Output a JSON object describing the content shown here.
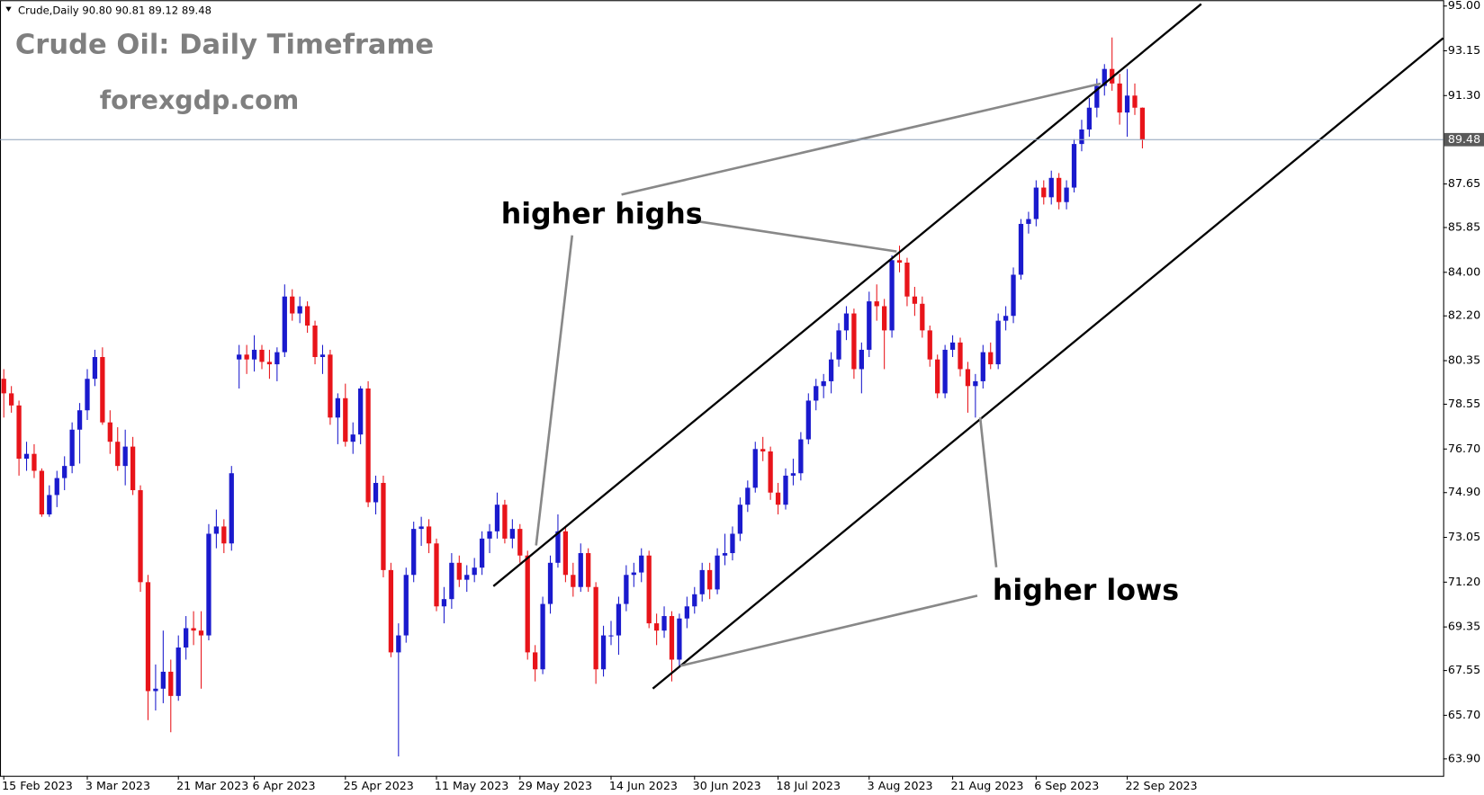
{
  "chart_data": {
    "type": "candlestick",
    "header": "Crude,Daily  90.80 90.81 89.12 89.48",
    "title": "Crude Oil: Daily Timeframe",
    "subtitle": "forexgdp.com",
    "annotations": [
      "higher highs",
      "higher lows"
    ],
    "up_color": "#1a1acd",
    "down_color": "#e8141a",
    "last_price": 89.48,
    "ylim": [
      63.2,
      95.24
    ],
    "yticks": [
      {
        "value": 95,
        "label": "95.00"
      },
      {
        "value": 93.15,
        "label": "93.15"
      },
      {
        "value": 91.3,
        "label": "91.30"
      },
      {
        "value": 87.65,
        "label": "87.65"
      },
      {
        "value": 85.85,
        "label": "85.85"
      },
      {
        "value": 84,
        "label": "84.00"
      },
      {
        "value": 82.2,
        "label": "82.20"
      },
      {
        "value": 80.35,
        "label": "80.35"
      },
      {
        "value": 78.55,
        "label": "78.55"
      },
      {
        "value": 76.7,
        "label": "76.70"
      },
      {
        "value": 74.9,
        "label": "74.90"
      },
      {
        "value": 73.05,
        "label": "73.05"
      },
      {
        "value": 71.2,
        "label": "71.20"
      },
      {
        "value": 69.35,
        "label": "69.35"
      },
      {
        "value": 67.55,
        "label": "67.55"
      },
      {
        "value": 65.7,
        "label": "65.70"
      },
      {
        "value": 63.9,
        "label": "63.90"
      }
    ],
    "categories": [
      "15 Feb 2023",
      null,
      null,
      null,
      null,
      null,
      null,
      null,
      null,
      null,
      null,
      "3 Mar 2023",
      null,
      null,
      null,
      null,
      null,
      null,
      null,
      null,
      null,
      null,
      null,
      "21 Mar 2023",
      null,
      null,
      null,
      null,
      null,
      null,
      null,
      null,
      null,
      "6 Apr 2023",
      null,
      null,
      null,
      null,
      null,
      null,
      null,
      null,
      null,
      null,
      null,
      "25 Apr 2023",
      null,
      null,
      null,
      null,
      null,
      null,
      null,
      null,
      null,
      null,
      null,
      "11 May 2023",
      null,
      null,
      null,
      null,
      null,
      null,
      null,
      null,
      null,
      null,
      "29 May 2023",
      null,
      null,
      null,
      null,
      null,
      null,
      null,
      null,
      null,
      null,
      null,
      "14 Jun 2023",
      null,
      null,
      null,
      null,
      null,
      null,
      null,
      null,
      null,
      null,
      "30 Jun 2023",
      null,
      null,
      null,
      null,
      null,
      null,
      null,
      null,
      null,
      null,
      "18 Jul 2023",
      null,
      null,
      null,
      null,
      null,
      null,
      null,
      null,
      null,
      null,
      null,
      "3 Aug 2023",
      null,
      null,
      null,
      null,
      null,
      null,
      null,
      null,
      null,
      null,
      "21 Aug 2023",
      null,
      null,
      null,
      null,
      null,
      null,
      null,
      null,
      null,
      null,
      "6 Sep 2023",
      null,
      null,
      null,
      null,
      null,
      null,
      null,
      null,
      null,
      null,
      null,
      "22 Sep 2023",
      null,
      null
    ],
    "ohlc": [
      [
        79.6,
        80.0,
        78.0,
        79.0
      ],
      [
        79.0,
        79.3,
        78.2,
        78.5
      ],
      [
        78.5,
        78.7,
        75.6,
        76.3
      ],
      [
        76.3,
        77.0,
        75.8,
        76.5
      ],
      [
        76.5,
        76.9,
        75.5,
        75.8
      ],
      [
        75.8,
        75.9,
        73.9,
        74.0
      ],
      [
        74.0,
        75.2,
        73.9,
        74.8
      ],
      [
        74.8,
        75.8,
        74.3,
        75.5
      ],
      [
        75.5,
        76.4,
        75.0,
        76.0
      ],
      [
        76.0,
        77.8,
        75.7,
        77.5
      ],
      [
        77.5,
        78.6,
        76.1,
        78.3
      ],
      [
        78.3,
        80.0,
        77.9,
        79.6
      ],
      [
        79.6,
        80.8,
        79.3,
        80.5
      ],
      [
        80.5,
        80.9,
        77.7,
        77.8
      ],
      [
        77.8,
        78.3,
        76.5,
        77.0
      ],
      [
        77.0,
        77.6,
        75.8,
        76.0
      ],
      [
        76.0,
        77.5,
        75.2,
        76.8
      ],
      [
        76.8,
        77.2,
        74.8,
        75.0
      ],
      [
        75.0,
        75.2,
        70.8,
        71.2
      ],
      [
        71.2,
        71.5,
        65.5,
        66.7
      ],
      [
        66.7,
        67.8,
        65.9,
        66.8
      ],
      [
        66.8,
        69.2,
        66.2,
        67.5
      ],
      [
        67.5,
        68.0,
        65.0,
        66.5
      ],
      [
        66.5,
        69.0,
        66.3,
        68.5
      ],
      [
        68.5,
        69.8,
        68.0,
        69.3
      ],
      [
        69.3,
        70.0,
        68.6,
        69.2
      ],
      [
        69.2,
        70.0,
        66.8,
        69.0
      ],
      [
        69.0,
        73.6,
        68.8,
        73.2
      ],
      [
        73.2,
        74.2,
        72.6,
        73.5
      ],
      [
        73.5,
        73.8,
        72.4,
        72.8
      ],
      [
        72.8,
        76.0,
        72.5,
        75.7
      ],
      [
        80.4,
        81.0,
        79.2,
        80.6
      ],
      [
        80.6,
        81.0,
        79.8,
        80.4
      ],
      [
        80.4,
        81.4,
        79.9,
        80.8
      ],
      [
        80.8,
        81.0,
        80.0,
        80.3
      ],
      [
        80.3,
        80.8,
        79.6,
        80.2
      ],
      [
        80.2,
        80.9,
        79.5,
        80.7
      ],
      [
        80.7,
        83.5,
        80.5,
        83.0
      ],
      [
        83.0,
        83.3,
        82.0,
        82.3
      ],
      [
        82.3,
        83.0,
        81.9,
        82.6
      ],
      [
        82.6,
        82.8,
        81.5,
        81.8
      ],
      [
        81.8,
        82.0,
        80.2,
        80.5
      ],
      [
        80.5,
        81.0,
        79.8,
        80.6
      ],
      [
        80.6,
        80.8,
        77.7,
        78.0
      ],
      [
        78.0,
        79.0,
        76.9,
        78.8
      ],
      [
        78.8,
        79.4,
        76.8,
        77.0
      ],
      [
        77.0,
        77.8,
        76.5,
        77.3
      ],
      [
        77.3,
        79.3,
        76.9,
        79.2
      ],
      [
        79.2,
        79.5,
        74.3,
        74.5
      ],
      [
        74.5,
        75.6,
        74.0,
        75.3
      ],
      [
        75.3,
        75.6,
        71.4,
        71.7
      ],
      [
        71.7,
        72.0,
        68.1,
        68.3
      ],
      [
        68.3,
        69.5,
        64.0,
        69.0
      ],
      [
        69.0,
        71.8,
        68.7,
        71.5
      ],
      [
        71.5,
        73.7,
        71.2,
        73.4
      ],
      [
        73.4,
        73.9,
        72.7,
        73.5
      ],
      [
        73.5,
        73.8,
        72.4,
        72.8
      ],
      [
        72.8,
        73.0,
        70.0,
        70.2
      ],
      [
        70.2,
        71.0,
        69.5,
        70.5
      ],
      [
        70.5,
        72.4,
        70.1,
        72.0
      ],
      [
        72.0,
        72.3,
        71.0,
        71.3
      ],
      [
        71.3,
        71.9,
        70.8,
        71.5
      ],
      [
        71.5,
        72.2,
        71.2,
        71.8
      ],
      [
        71.8,
        73.3,
        71.5,
        73.0
      ],
      [
        73.0,
        73.6,
        72.4,
        73.3
      ],
      [
        73.3,
        74.9,
        73.0,
        74.4
      ],
      [
        74.4,
        74.6,
        72.8,
        73.0
      ],
      [
        73.0,
        73.8,
        72.6,
        73.4
      ],
      [
        73.4,
        73.6,
        72.0,
        72.3
      ],
      [
        72.3,
        72.5,
        68.0,
        68.3
      ],
      [
        68.3,
        68.6,
        67.1,
        67.6
      ],
      [
        67.6,
        70.6,
        67.4,
        70.3
      ],
      [
        70.3,
        72.3,
        69.9,
        72.0
      ],
      [
        72.0,
        74.0,
        71.8,
        73.3
      ],
      [
        73.3,
        73.5,
        71.2,
        71.5
      ],
      [
        71.5,
        72.0,
        70.6,
        71.0
      ],
      [
        71.0,
        72.8,
        70.8,
        72.4
      ],
      [
        72.4,
        72.6,
        70.8,
        71.0
      ],
      [
        71.0,
        71.2,
        67.0,
        67.6
      ],
      [
        67.6,
        69.4,
        67.3,
        69.0
      ],
      [
        69.0,
        69.6,
        68.6,
        69.0
      ],
      [
        69.0,
        70.6,
        68.2,
        70.3
      ],
      [
        70.3,
        71.9,
        70.0,
        71.5
      ],
      [
        71.5,
        72.0,
        71.0,
        71.6
      ],
      [
        71.6,
        72.6,
        71.2,
        72.3
      ],
      [
        72.3,
        72.5,
        69.3,
        69.5
      ],
      [
        69.5,
        69.9,
        68.6,
        69.2
      ],
      [
        69.2,
        70.2,
        68.9,
        69.8
      ],
      [
        69.8,
        70.0,
        67.1,
        68.0
      ],
      [
        68.0,
        69.9,
        67.7,
        69.7
      ],
      [
        69.7,
        70.6,
        69.3,
        70.2
      ],
      [
        70.2,
        71.0,
        69.9,
        70.7
      ],
      [
        70.7,
        72.0,
        70.4,
        71.7
      ],
      [
        71.7,
        72.0,
        70.5,
        70.9
      ],
      [
        70.9,
        72.6,
        70.7,
        72.3
      ],
      [
        72.3,
        73.2,
        71.9,
        72.4
      ],
      [
        72.4,
        73.5,
        72.1,
        73.2
      ],
      [
        73.2,
        74.7,
        72.9,
        74.4
      ],
      [
        74.4,
        75.4,
        74.1,
        75.1
      ],
      [
        75.1,
        77.0,
        74.9,
        76.7
      ],
      [
        76.7,
        77.2,
        76.2,
        76.6
      ],
      [
        76.6,
        76.8,
        74.6,
        74.9
      ],
      [
        74.9,
        75.3,
        74.0,
        74.4
      ],
      [
        74.4,
        75.9,
        74.2,
        75.6
      ],
      [
        75.6,
        76.3,
        75.2,
        75.7
      ],
      [
        75.7,
        77.4,
        75.4,
        77.1
      ],
      [
        77.1,
        79.0,
        76.9,
        78.7
      ],
      [
        78.7,
        79.6,
        78.3,
        79.3
      ],
      [
        79.3,
        79.8,
        78.8,
        79.5
      ],
      [
        79.5,
        80.7,
        79.0,
        80.4
      ],
      [
        80.4,
        81.9,
        80.1,
        81.6
      ],
      [
        81.6,
        82.6,
        81.2,
        82.3
      ],
      [
        82.3,
        82.5,
        79.6,
        80.0
      ],
      [
        80.0,
        81.1,
        79.0,
        80.8
      ],
      [
        80.8,
        83.2,
        80.5,
        82.8
      ],
      [
        82.8,
        83.5,
        82.0,
        82.6
      ],
      [
        82.6,
        82.9,
        80.0,
        81.6
      ],
      [
        81.6,
        84.7,
        81.3,
        84.5
      ],
      [
        84.5,
        85.1,
        84.0,
        84.4
      ],
      [
        84.4,
        84.6,
        82.6,
        83.0
      ],
      [
        83.0,
        83.4,
        82.2,
        82.7
      ],
      [
        82.7,
        83.0,
        81.3,
        81.6
      ],
      [
        81.6,
        81.8,
        80.1,
        80.4
      ],
      [
        80.4,
        80.6,
        78.8,
        79.0
      ],
      [
        79.0,
        81.0,
        78.8,
        80.8
      ],
      [
        80.8,
        81.4,
        80.5,
        81.1
      ],
      [
        81.1,
        81.3,
        79.7,
        80.0
      ],
      [
        80.0,
        80.3,
        78.2,
        79.3
      ],
      [
        79.3,
        79.8,
        78.0,
        79.5
      ],
      [
        79.5,
        81.0,
        79.2,
        80.7
      ],
      [
        80.7,
        81.1,
        80.0,
        80.2
      ],
      [
        80.2,
        82.3,
        80.0,
        82.0
      ],
      [
        82.0,
        82.6,
        81.6,
        82.2
      ],
      [
        82.2,
        84.2,
        81.9,
        83.9
      ],
      [
        83.9,
        86.2,
        83.7,
        86.0
      ],
      [
        86.0,
        86.5,
        85.6,
        86.2
      ],
      [
        86.2,
        87.8,
        85.9,
        87.5
      ],
      [
        87.5,
        87.8,
        86.8,
        87.1
      ],
      [
        87.1,
        88.2,
        86.8,
        87.9
      ],
      [
        87.9,
        88.1,
        86.6,
        86.9
      ],
      [
        86.9,
        87.8,
        86.6,
        87.5
      ],
      [
        87.5,
        89.5,
        87.3,
        89.3
      ],
      [
        89.3,
        90.3,
        89.0,
        89.9
      ],
      [
        89.9,
        91.2,
        89.6,
        90.8
      ],
      [
        90.8,
        92.0,
        90.4,
        91.7
      ],
      [
        91.7,
        92.6,
        91.3,
        92.4
      ],
      [
        92.4,
        93.7,
        91.5,
        91.8
      ],
      [
        91.8,
        92.2,
        90.1,
        90.6
      ],
      [
        90.6,
        92.4,
        89.6,
        91.3
      ],
      [
        91.3,
        91.8,
        90.5,
        90.8
      ],
      [
        90.8,
        90.81,
        89.12,
        89.48
      ]
    ]
  }
}
